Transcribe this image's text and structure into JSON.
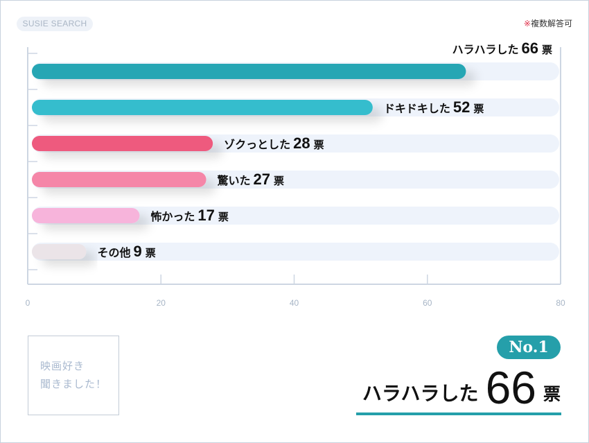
{
  "brand": "SUSIE SEARCH",
  "note": {
    "mark": "※",
    "text": "複数解答可"
  },
  "chart_data": {
    "type": "bar",
    "orientation": "horizontal",
    "categories": [
      "ハラハラした",
      "ドキドキした",
      "ゾクっとした",
      "驚いた",
      "怖かった",
      "その他"
    ],
    "values": [
      66,
      52,
      28,
      27,
      17,
      9
    ],
    "unit": "票",
    "colors": [
      "#26a6b4",
      "#36bdcd",
      "#ee5a7e",
      "#f586a8",
      "#f7b4db",
      "#ebe4e8"
    ],
    "track_color": "#eef3fb",
    "xlim": [
      0,
      80
    ],
    "xticks": [
      0,
      20,
      40,
      60,
      80
    ],
    "grid": true
  },
  "callout": {
    "line1": "映画好き",
    "line2": "聞きました！"
  },
  "top": {
    "badge": "No.1",
    "label": "ハラハラした",
    "value": "66",
    "unit": "票"
  }
}
